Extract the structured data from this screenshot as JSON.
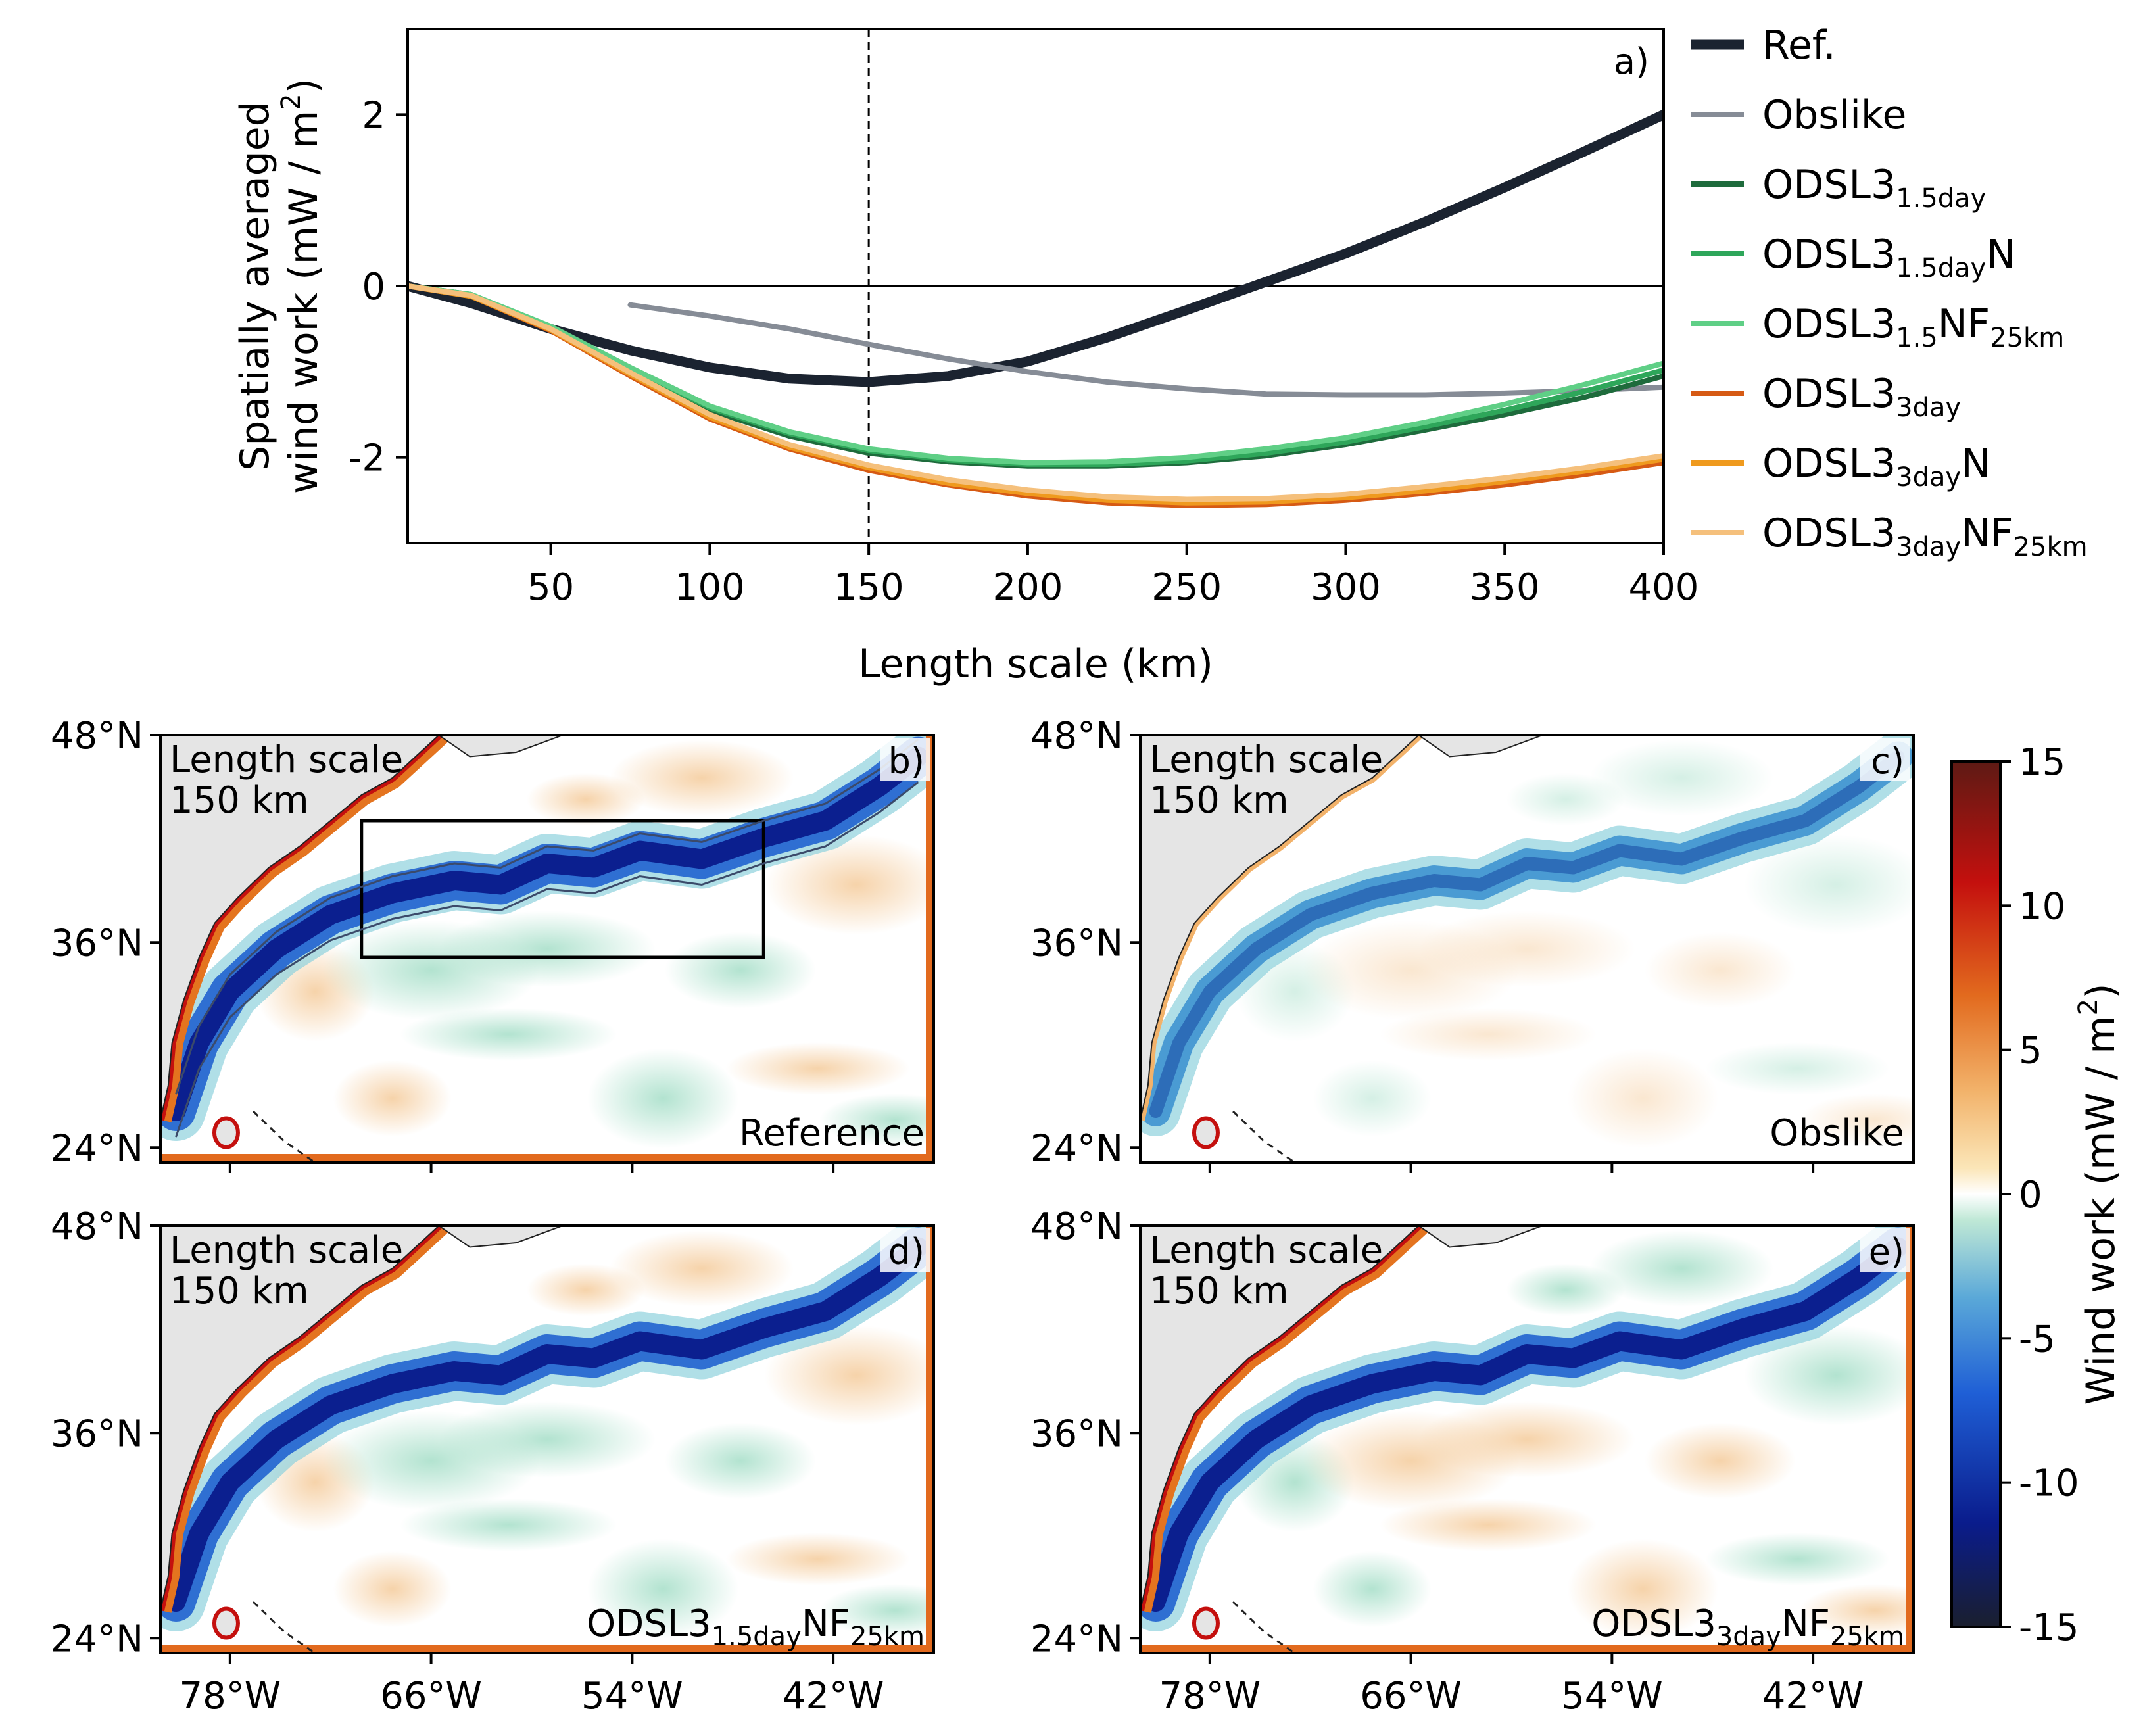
{
  "chart_data": [
    {
      "type": "line",
      "panel": "a)",
      "xlabel": "Length scale (km)",
      "ylabel_line1": "Spatially averaged",
      "ylabel_line2": "wind work (mW / m",
      "ylabel_sup": "2",
      "ylabel_close": ")",
      "xlim": [
        5,
        400
      ],
      "ylim": [
        -3,
        3
      ],
      "xticks": [
        50,
        100,
        150,
        200,
        250,
        300,
        350,
        400
      ],
      "yticks": [
        -2,
        0,
        2
      ],
      "ytick_labels": [
        "-2",
        "0",
        "2"
      ],
      "vline_x": 150,
      "hline_y": 0,
      "x": [
        5,
        25,
        50,
        75,
        100,
        125,
        150,
        175,
        200,
        225,
        250,
        275,
        300,
        325,
        350,
        375,
        400
      ],
      "series": [
        {
          "name": "Ref.",
          "label_main": "Ref.",
          "label_sub": "",
          "label_post": "",
          "label_sub2": "",
          "color": "#1b2330",
          "width": 15,
          "values": [
            0.0,
            -0.2,
            -0.5,
            -0.75,
            -0.95,
            -1.08,
            -1.12,
            -1.05,
            -0.88,
            -0.6,
            -0.28,
            0.05,
            0.38,
            0.75,
            1.15,
            1.57,
            2.0
          ]
        },
        {
          "name": "Obslike",
          "label_main": "Obslike",
          "label_sub": "",
          "label_post": "",
          "label_sub2": "",
          "color": "#868c96",
          "width": 8,
          "values": [
            null,
            null,
            null,
            -0.22,
            -0.35,
            -0.5,
            -0.68,
            -0.85,
            -1.0,
            -1.12,
            -1.2,
            -1.26,
            -1.27,
            -1.27,
            -1.25,
            -1.22,
            -1.18
          ]
        },
        {
          "name": "ODSL3_1.5day",
          "label_main": "ODSL3",
          "label_sub": "1.5day",
          "label_post": "",
          "label_sub2": "",
          "color": "#1e6b3c",
          "width": 8,
          "values": [
            0.0,
            -0.1,
            -0.5,
            -0.98,
            -1.45,
            -1.75,
            -1.95,
            -2.05,
            -2.1,
            -2.1,
            -2.06,
            -1.98,
            -1.85,
            -1.68,
            -1.5,
            -1.3,
            -1.05
          ]
        },
        {
          "name": "ODSL3_1.5dayN",
          "label_main": "ODSL3",
          "label_sub": "1.5day",
          "label_post": "N",
          "label_sub2": "",
          "color": "#2ea65a",
          "width": 8,
          "values": [
            0.0,
            -0.1,
            -0.48,
            -0.96,
            -1.42,
            -1.72,
            -1.92,
            -2.03,
            -2.08,
            -2.08,
            -2.04,
            -1.95,
            -1.82,
            -1.64,
            -1.45,
            -1.23,
            -0.98
          ]
        },
        {
          "name": "ODSL3_1.5NF_25km",
          "label_main": "ODSL3",
          "label_sub": "1.5",
          "label_post": "NF",
          "label_sub2": "25km",
          "color": "#5fcf86",
          "width": 8,
          "values": [
            0.0,
            -0.1,
            -0.47,
            -0.95,
            -1.4,
            -1.7,
            -1.9,
            -2.01,
            -2.06,
            -2.05,
            -2.0,
            -1.9,
            -1.77,
            -1.59,
            -1.38,
            -1.15,
            -0.9
          ]
        },
        {
          "name": "ODSL3_3day",
          "label_main": "ODSL3",
          "label_sub": "3day",
          "label_post": "",
          "label_sub2": "",
          "color": "#d65a14",
          "width": 8,
          "values": [
            0.0,
            -0.12,
            -0.52,
            -1.05,
            -1.55,
            -1.9,
            -2.15,
            -2.32,
            -2.45,
            -2.53,
            -2.56,
            -2.55,
            -2.5,
            -2.42,
            -2.32,
            -2.2,
            -2.06
          ]
        },
        {
          "name": "ODSL3_3dayN",
          "label_main": "ODSL3",
          "label_sub": "3day",
          "label_post": "N",
          "label_sub2": "",
          "color": "#ef9a1e",
          "width": 8,
          "values": [
            0.0,
            -0.12,
            -0.51,
            -1.03,
            -1.53,
            -1.88,
            -2.12,
            -2.3,
            -2.42,
            -2.5,
            -2.53,
            -2.52,
            -2.47,
            -2.39,
            -2.28,
            -2.16,
            -2.02
          ]
        },
        {
          "name": "ODSL3_3dayNF_25km",
          "label_main": "ODSL3",
          "label_sub": "3day",
          "label_post": "NF",
          "label_sub2": "25km",
          "color": "#f5c07c",
          "width": 8,
          "values": [
            0.0,
            -0.11,
            -0.5,
            -1.01,
            -1.5,
            -1.85,
            -2.09,
            -2.26,
            -2.38,
            -2.46,
            -2.49,
            -2.48,
            -2.43,
            -2.34,
            -2.24,
            -2.12,
            -1.98
          ]
        }
      ]
    },
    {
      "type": "heatmap",
      "description": "Four map panels of wind work over the North Atlantic",
      "lat_ticks": [
        "48°N",
        "36°N",
        "24°N"
      ],
      "lon_ticks": [
        "78°W",
        "66°W",
        "54°W",
        "42°W"
      ],
      "corner_line1": "Length scale",
      "corner_line2": "150 km",
      "panels": [
        {
          "id": "b)",
          "label_main": "Reference",
          "label_sub": "",
          "label_post": "",
          "label_sub2": ""
        },
        {
          "id": "c)",
          "label_main": "Obslike",
          "label_sub": "",
          "label_post": "",
          "label_sub2": ""
        },
        {
          "id": "d)",
          "label_main": "ODSL3",
          "label_sub": "1.5day",
          "label_post": "NF",
          "label_sub2": "25km"
        },
        {
          "id": "e)",
          "label_main": "ODSL3",
          "label_sub": "3day",
          "label_post": "NF",
          "label_sub2": "25km"
        }
      ],
      "colorbar": {
        "label_main": "Wind work (mW / m",
        "label_sup": "2",
        "label_close": ")",
        "range": [
          -15,
          15
        ],
        "ticks": [
          15,
          10,
          5,
          0,
          -5,
          -10,
          -15
        ],
        "tick_labels": [
          "15",
          "10",
          "5",
          "0",
          "-5",
          "-10",
          "-15"
        ]
      }
    }
  ]
}
